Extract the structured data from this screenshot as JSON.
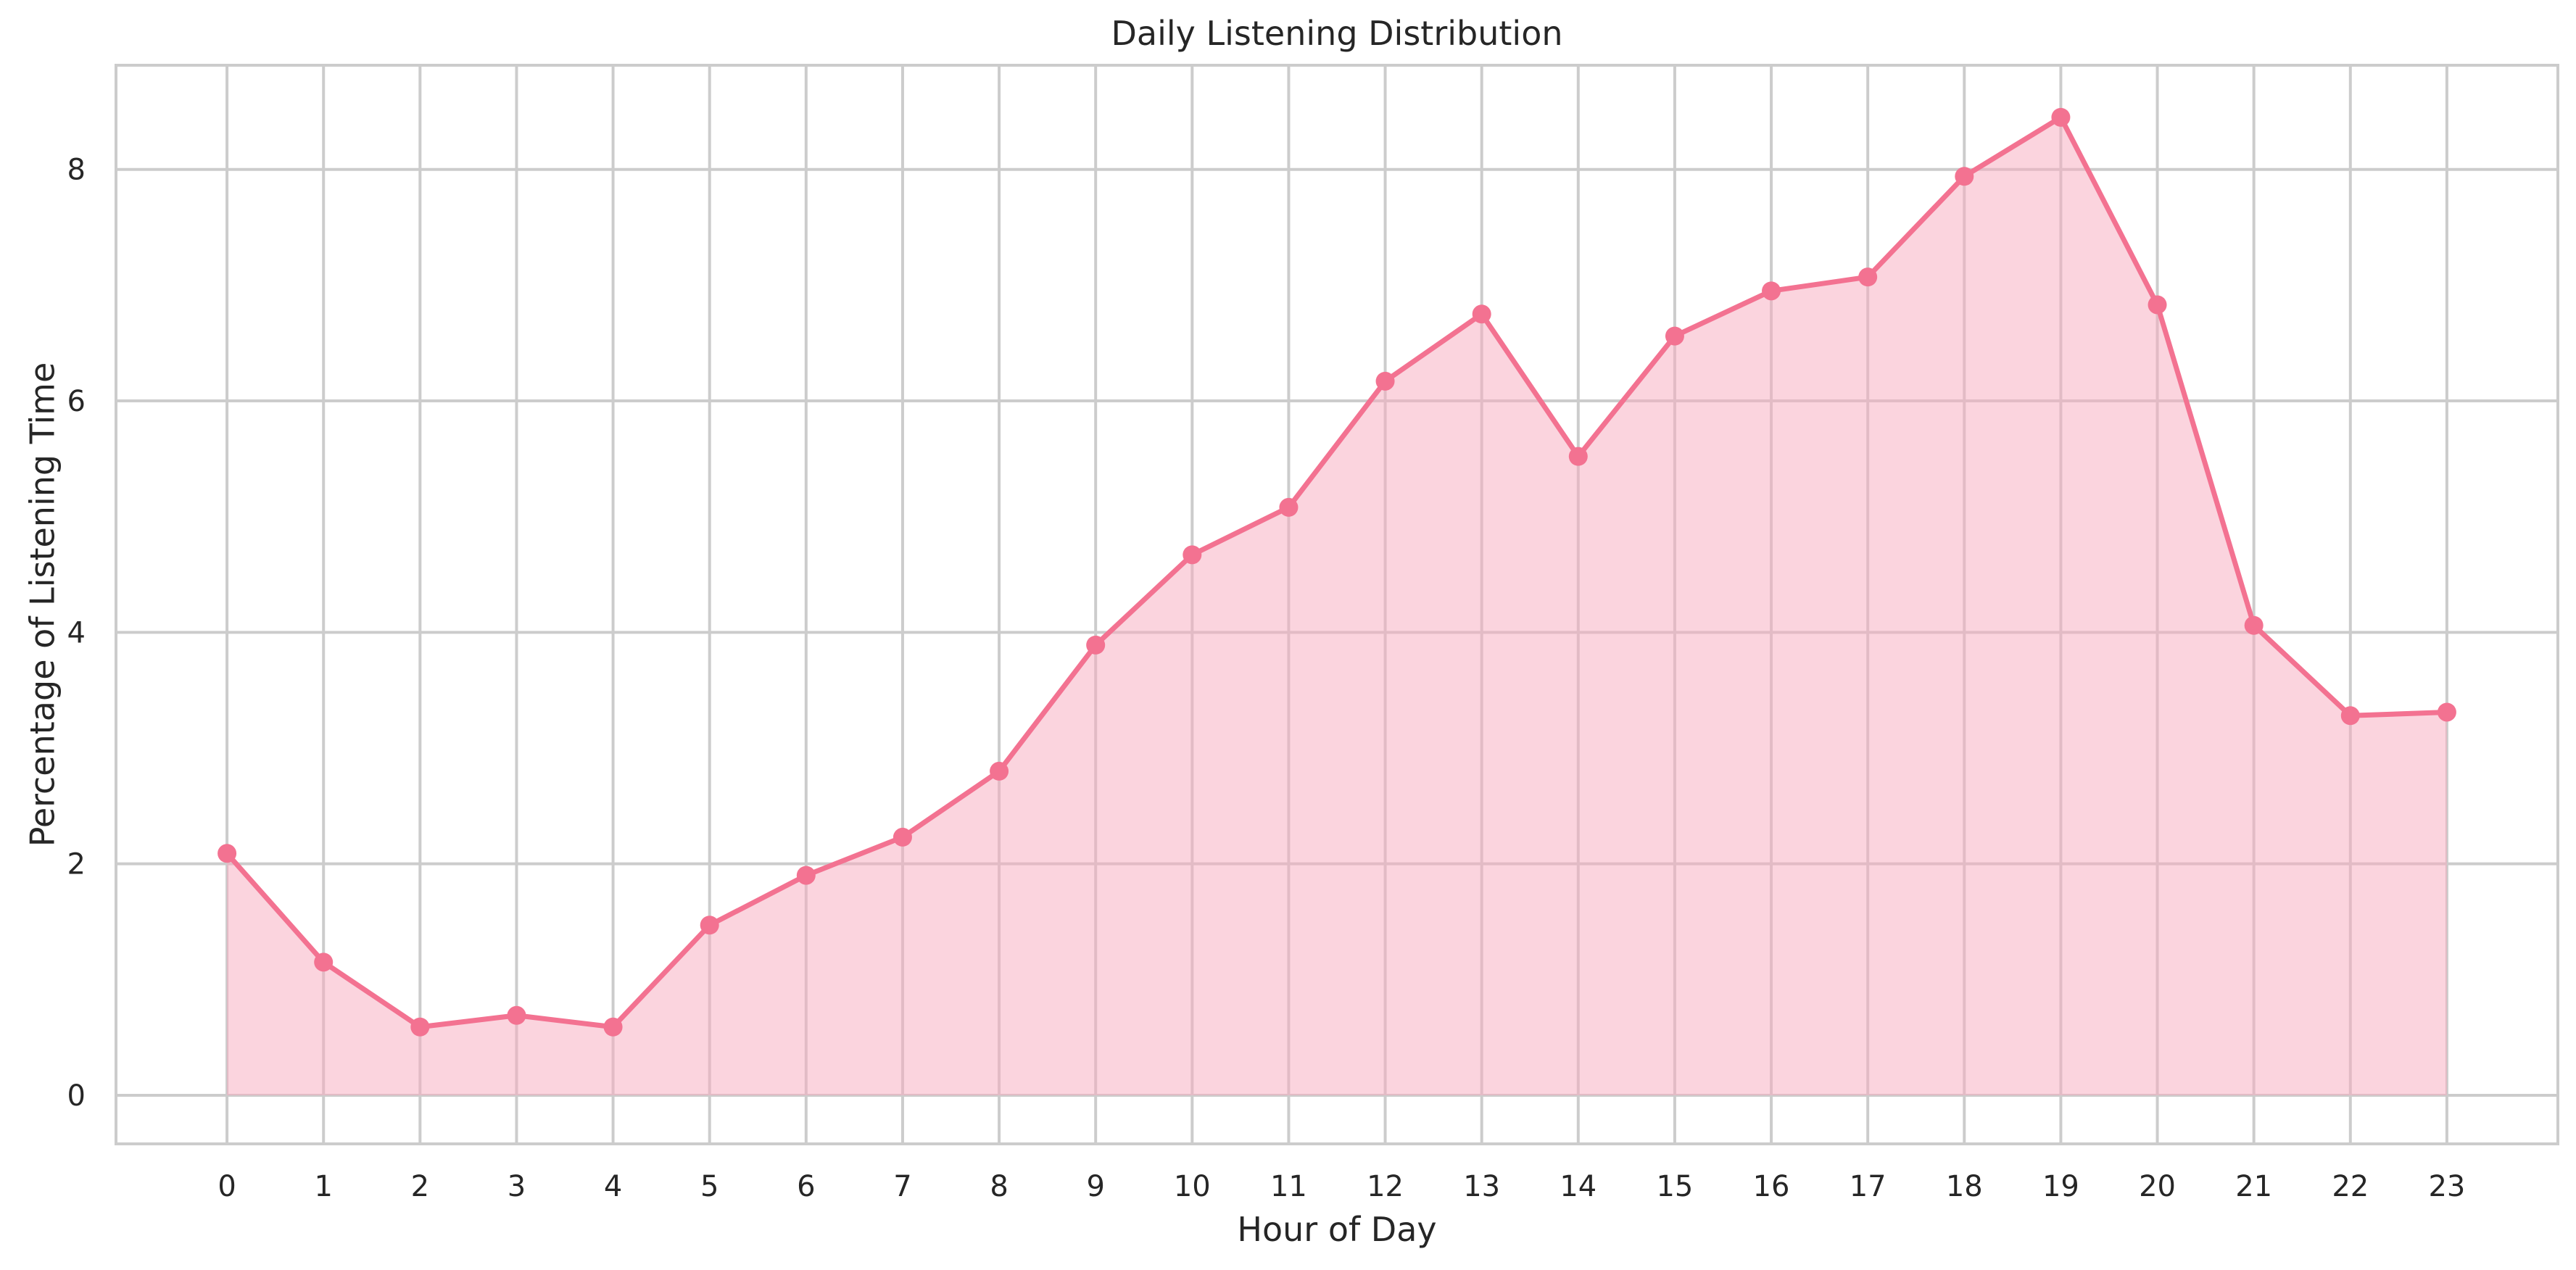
{
  "chart_data": {
    "type": "area",
    "title": "Daily Listening Distribution",
    "xlabel": "Hour of Day",
    "ylabel": "Percentage of Listening Time",
    "x": [
      0,
      1,
      2,
      3,
      4,
      5,
      6,
      7,
      8,
      9,
      10,
      11,
      12,
      13,
      14,
      15,
      16,
      17,
      18,
      19,
      20,
      21,
      22,
      23
    ],
    "xticks": [
      "0",
      "1",
      "2",
      "3",
      "4",
      "5",
      "6",
      "7",
      "8",
      "9",
      "10",
      "11",
      "12",
      "13",
      "14",
      "15",
      "16",
      "17",
      "18",
      "19",
      "20",
      "21",
      "22",
      "23"
    ],
    "y": [
      2.09,
      1.15,
      0.59,
      0.69,
      0.59,
      1.47,
      1.9,
      2.23,
      2.8,
      3.89,
      4.67,
      5.08,
      6.17,
      6.75,
      5.52,
      6.56,
      6.95,
      7.07,
      7.94,
      8.45,
      6.83,
      4.06,
      3.28,
      3.31
    ],
    "yticks": [
      0,
      2,
      4,
      6,
      8
    ],
    "xlim": [
      -1.15,
      24.15
    ],
    "ylim": [
      -0.42,
      8.9
    ],
    "grid": true,
    "colors": {
      "line": "#f37291",
      "fill": "#f7a9bd",
      "grid": "#cccccc",
      "frame": "#cccccc"
    }
  }
}
